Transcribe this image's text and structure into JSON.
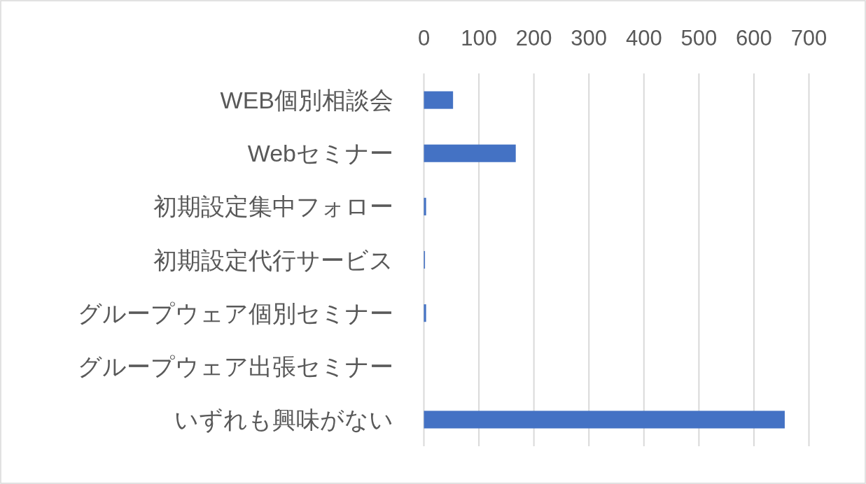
{
  "chart_data": {
    "type": "bar",
    "orientation": "horizontal",
    "categories": [
      "WEB個別相談会",
      "Webセミナー",
      "初期設定集中フォロー",
      "初期設定代行サービス",
      "グループウェア個別セミナー",
      "グループウェア出張セミナー",
      "いずれも興味がない"
    ],
    "values": [
      53,
      167,
      4,
      2,
      4,
      0,
      656
    ],
    "color": "#4472c4",
    "xlim": [
      0,
      700
    ],
    "xticks": [
      0,
      100,
      200,
      300,
      400,
      500,
      600,
      700
    ],
    "grid": "x"
  }
}
